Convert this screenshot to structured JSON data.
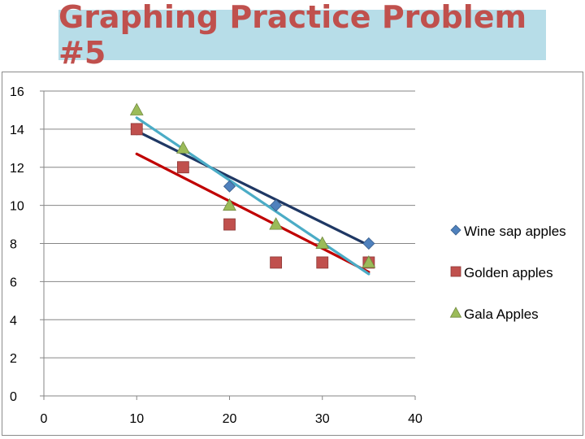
{
  "header": {
    "title": "Graphing Practice Problem #5"
  },
  "chart_data": {
    "type": "scatter",
    "title": "",
    "xlabel": "",
    "ylabel": "",
    "xlim": [
      0,
      40
    ],
    "ylim": [
      0,
      16
    ],
    "xticks": [
      0,
      10,
      20,
      30,
      40
    ],
    "yticks": [
      0,
      2,
      4,
      6,
      8,
      10,
      12,
      14,
      16
    ],
    "grid": "horizontal",
    "legend": "right",
    "series": [
      {
        "name": "Wine sap apples",
        "marker": "diamond",
        "color": "#4f81bd",
        "trend_color": "#1f3864",
        "x": [
          10,
          20,
          25,
          35
        ],
        "y": [
          14,
          11,
          10,
          8
        ],
        "trendline": {
          "x": [
            10,
            35
          ],
          "y": [
            13.9,
            7.9
          ]
        }
      },
      {
        "name": "Golden apples",
        "marker": "square",
        "color": "#c0504d",
        "trend_color": "#c00000",
        "x": [
          10,
          15,
          20,
          25,
          30,
          35
        ],
        "y": [
          14,
          12,
          9,
          7,
          7,
          7
        ],
        "trendline": {
          "x": [
            10,
            35
          ],
          "y": [
            12.7,
            6.5
          ]
        }
      },
      {
        "name": "Gala Apples",
        "marker": "triangle",
        "color": "#9bbb59",
        "trend_color": "#4bacc6",
        "x": [
          10,
          15,
          20,
          25,
          30,
          35
        ],
        "y": [
          15,
          13,
          10,
          9,
          8,
          7
        ],
        "trendline": {
          "x": [
            10,
            35
          ],
          "y": [
            14.6,
            6.4
          ]
        }
      }
    ]
  }
}
